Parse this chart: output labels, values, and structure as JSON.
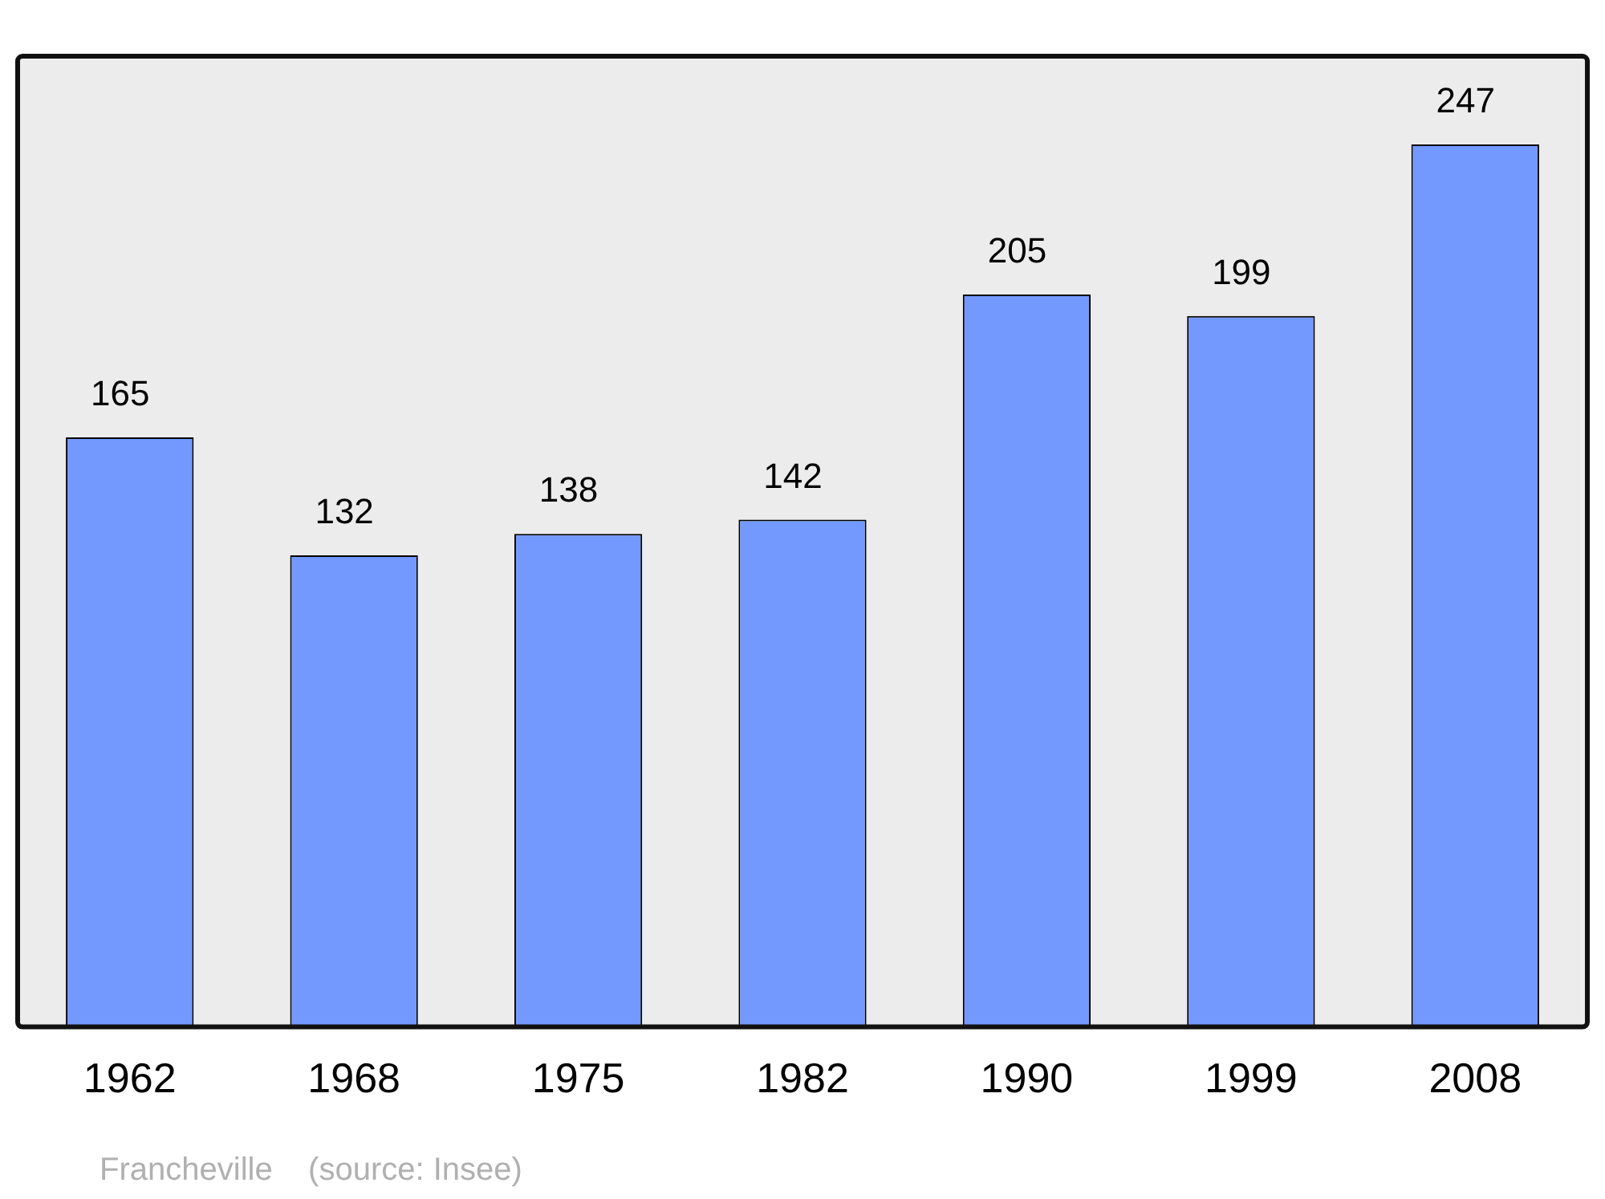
{
  "chart_data": {
    "type": "bar",
    "categories": [
      "1962",
      "1968",
      "1975",
      "1982",
      "1990",
      "1999",
      "2008"
    ],
    "values": [
      165,
      132,
      138,
      142,
      205,
      199,
      247
    ],
    "color": "#7399ff",
    "data_labels": true,
    "annotations": [
      "Francheville    (source: Insee)"
    ]
  }
}
